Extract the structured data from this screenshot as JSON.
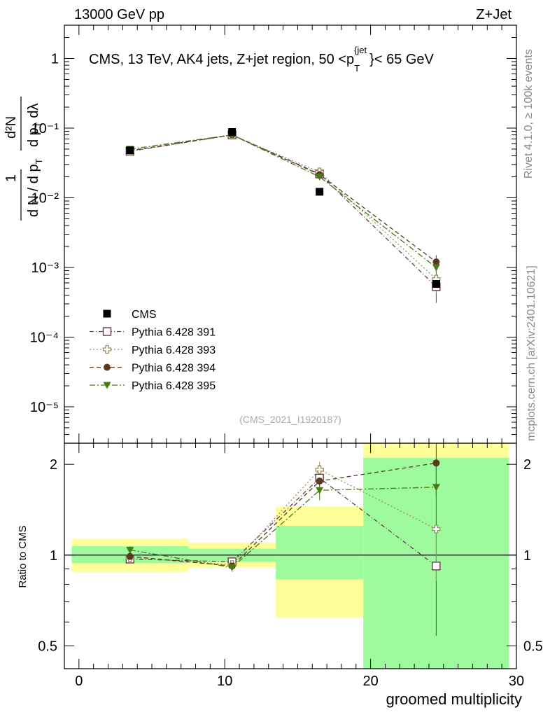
{
  "header": {
    "beam": "13000 GeV pp",
    "process": "Z+Jet",
    "analysis_title_pre": "CMS, 13 TeV, AK4 jets, Z+jet region, 50 <p",
    "analysis_title_sub": "T",
    "analysis_title_sup": "{jet",
    "analysis_title_post": "}< 65 GeV",
    "analysis_id": "(CMS_2021_I1920187)",
    "rivet_label": "Rivet 4.1.0, ≥ 100k events",
    "mcplots_label": "mcplots.cern.ch [arXiv:2401.10621]"
  },
  "colors": {
    "cms": "#000000",
    "p391": "#6b3a50",
    "p393": "#9a9060",
    "p394": "#5b3a22",
    "p395": "#4a7a12",
    "band_green": "#9dfb9d",
    "band_yellow": "#ffff99"
  },
  "chart_data": [
    {
      "type": "scatter",
      "panel": "main",
      "title": "CMS, 13 TeV, AK4 jets, Z+jet region, 50 <pT{jet}< 65 GeV",
      "xlabel": "groomed multiplicity",
      "ylabel": "1/(dN/dpT) d²N/(dpT dλ)",
      "yscale": "log",
      "xlim": [
        -1,
        30
      ],
      "ylim": [
        3e-06,
        3
      ],
      "yticks": [
        {
          "value": 1e-05,
          "label": "10⁻⁵"
        },
        {
          "value": 0.0001,
          "label": "10⁻⁴"
        },
        {
          "value": 0.001,
          "label": "10⁻³"
        },
        {
          "value": 0.01,
          "label": "10⁻²"
        },
        {
          "value": 0.1,
          "label": "10⁻¹"
        },
        {
          "value": 1,
          "label": "1"
        }
      ],
      "x": [
        3.5,
        10.5,
        16.5,
        24.5
      ],
      "series": [
        {
          "name": "CMS",
          "key": "cms",
          "marker": "square-filled",
          "line": "none",
          "values": [
            0.048,
            0.088,
            0.0122,
            0.00058
          ],
          "errors": [
            0.0015,
            0.002,
            0.0004,
            4e-05
          ]
        },
        {
          "name": "Pythia 6.428 391",
          "key": "p391",
          "marker": "square-open",
          "line": "6,3,1,3",
          "values": [
            0.0465,
            0.08,
            0.022,
            0.00053
          ],
          "errors": [
            0.001,
            0.002,
            0.0015,
            0.00022
          ]
        },
        {
          "name": "Pythia 6.428 393",
          "key": "p393",
          "marker": "cross-open",
          "line": "2,3",
          "values": [
            0.047,
            0.079,
            0.0235,
            0.00068
          ],
          "errors": [
            0.001,
            0.002,
            0.0015,
            0.00025
          ]
        },
        {
          "name": "Pythia 6.428 394",
          "key": "p394",
          "marker": "circle-filled",
          "line": "6,4",
          "values": [
            0.0475,
            0.08,
            0.0215,
            0.0012
          ],
          "errors": [
            0.001,
            0.002,
            0.0015,
            0.0003
          ]
        },
        {
          "name": "Pythia 6.428 395",
          "key": "p395",
          "marker": "triangle-down-filled",
          "line": "8,3,2,3",
          "values": [
            0.05,
            0.08,
            0.02,
            0.001
          ],
          "errors": [
            0.001,
            0.002,
            0.0015,
            0.00025
          ]
        }
      ]
    },
    {
      "type": "scatter",
      "panel": "ratio",
      "xlabel": "groomed multiplicity",
      "ylabel": "Ratio to CMS",
      "yscale": "log",
      "xlim": [
        -1,
        30
      ],
      "ylim": [
        0.42,
        2.35
      ],
      "xticks": [
        0,
        10,
        20,
        30
      ],
      "yticks": [
        0.5,
        1,
        2
      ],
      "reference": 1,
      "bands": [
        {
          "x0": -0.5,
          "x1": 7.5,
          "green": [
            0.94,
            1.07
          ],
          "yellow": [
            0.88,
            1.13
          ]
        },
        {
          "x0": 7.5,
          "x1": 13.5,
          "green": [
            0.95,
            1.05
          ],
          "yellow": [
            0.91,
            1.1
          ]
        },
        {
          "x0": 13.5,
          "x1": 19.5,
          "green": [
            0.83,
            1.25
          ],
          "yellow": [
            0.62,
            1.45
          ]
        },
        {
          "x0": 19.5,
          "x1": 29.5,
          "green": [
            0.4,
            2.1
          ],
          "yellow": [
            0.4,
            2.35
          ]
        }
      ],
      "x": [
        3.5,
        10.5,
        16.5,
        24.5
      ],
      "series": [
        {
          "name": "Pythia 6.428 391",
          "key": "p391",
          "values": [
            0.97,
            0.95,
            1.8,
            0.92
          ],
          "errors": [
            0.03,
            0.03,
            0.1,
            0.38
          ]
        },
        {
          "name": "Pythia 6.428 393",
          "key": "p393",
          "values": [
            0.98,
            0.93,
            1.92,
            1.22
          ],
          "errors": [
            0.03,
            0.03,
            0.12,
            0.4
          ]
        },
        {
          "name": "Pythia 6.428 394",
          "key": "p394",
          "values": [
            0.99,
            0.92,
            1.76,
            2.02
          ],
          "errors": [
            0.03,
            0.03,
            0.12,
            0.45
          ]
        },
        {
          "name": "Pythia 6.428 395",
          "key": "p395",
          "values": [
            1.04,
            0.91,
            1.64,
            1.68
          ],
          "errors": [
            0.03,
            0.03,
            0.12,
            0.42
          ]
        }
      ]
    }
  ],
  "legend": [
    {
      "label": "CMS",
      "key": "cms",
      "marker": "square-filled"
    },
    {
      "label": "Pythia 6.428 391",
      "key": "p391",
      "marker": "square-open"
    },
    {
      "label": "Pythia 6.428 393",
      "key": "p393",
      "marker": "cross-open"
    },
    {
      "label": "Pythia 6.428 394",
      "key": "p394",
      "marker": "circle-filled"
    },
    {
      "label": "Pythia 6.428 395",
      "key": "p395",
      "marker": "triangle-down-filled"
    }
  ]
}
